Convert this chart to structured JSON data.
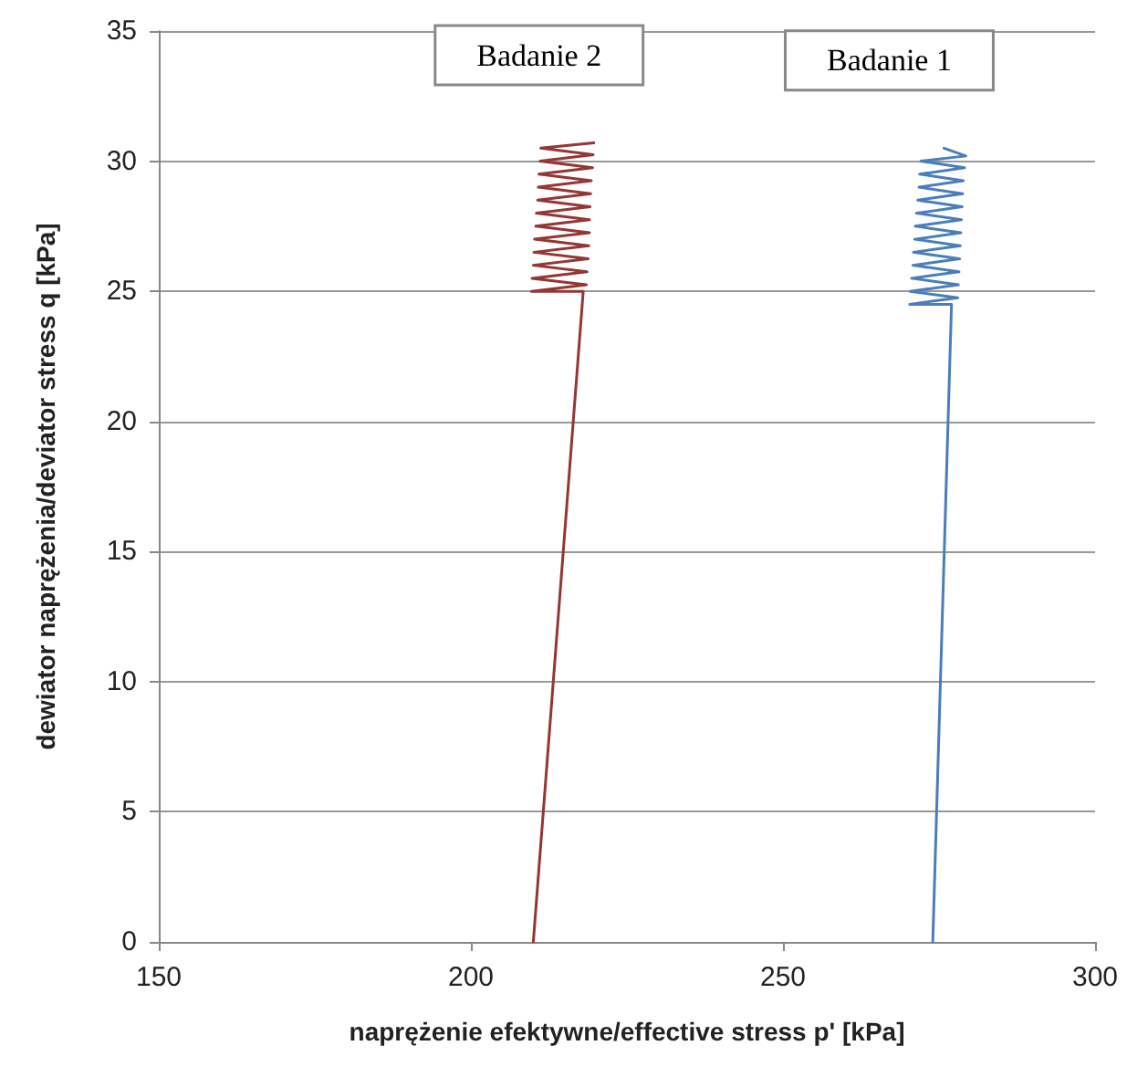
{
  "chart_data": {
    "type": "line",
    "xlabel": "naprężenie efektywne/effective stress p' [kPa]",
    "ylabel": "dewiator naprężenia/deviator stress q [kPa]",
    "xlim": [
      150,
      300
    ],
    "xticks": [
      150,
      200,
      250,
      300
    ],
    "ylim": [
      0,
      35
    ],
    "yticks": [
      0,
      5,
      10,
      15,
      20,
      25,
      30,
      35
    ],
    "grid": "y",
    "legend": false,
    "marker": "none",
    "line_style": "solid",
    "series": [
      {
        "name": "Badanie 1",
        "color": "#4a7ebb",
        "x": [
          274,
          277,
          270.3,
          278.0,
          270.4,
          278.1,
          270.6,
          278.2,
          270.8,
          278.3,
          270.9,
          278.4,
          271.1,
          278.5,
          271.2,
          278.6,
          271.4,
          278.7,
          271.6,
          278.8,
          271.8,
          278.9,
          271.9,
          279.1,
          272.1,
          279.3,
          275.8
        ],
        "values": [
          0,
          24.5,
          24.5,
          24.75,
          25.0,
          25.25,
          25.5,
          25.75,
          26.0,
          26.25,
          26.5,
          26.75,
          27.0,
          27.25,
          27.5,
          27.75,
          28.0,
          28.25,
          28.5,
          28.75,
          29.0,
          29.25,
          29.5,
          29.75,
          30.0,
          30.2,
          30.5
        ]
      },
      {
        "name": "Badanie 2",
        "color": "#943634",
        "x": [
          210,
          218,
          209.7,
          218.5,
          209.8,
          218.6,
          210.0,
          218.8,
          210.1,
          218.9,
          210.2,
          219.0,
          210.4,
          219.0,
          210.5,
          219.1,
          210.7,
          219.2,
          210.8,
          219.3,
          210.9,
          219.5,
          211.1,
          219.6,
          211.2,
          219.7
        ],
        "values": [
          0,
          25,
          25.0,
          25.25,
          25.5,
          25.75,
          26.0,
          26.25,
          26.5,
          26.75,
          27.0,
          27.25,
          27.5,
          27.75,
          28.0,
          28.25,
          28.5,
          28.75,
          29.0,
          29.25,
          29.5,
          29.75,
          30.0,
          30.25,
          30.5,
          30.7
        ]
      }
    ]
  }
}
